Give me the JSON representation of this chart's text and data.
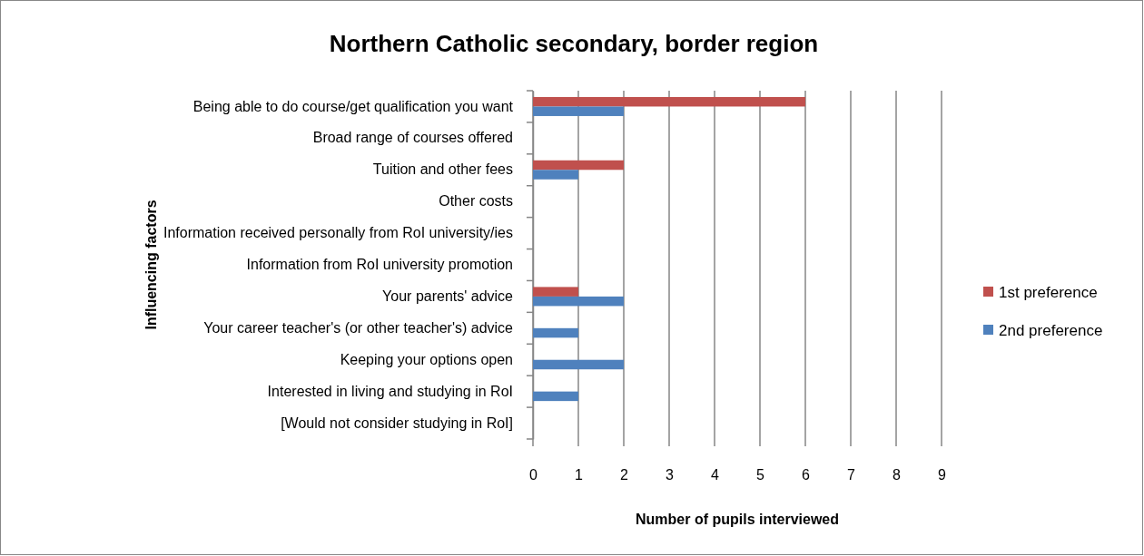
{
  "chart_data": {
    "type": "bar",
    "orientation": "horizontal",
    "title": "Northern Catholic secondary, border region",
    "xlabel": "Number of pupils interviewed",
    "ylabel": "Influencing factors",
    "categories": [
      "Being able to do course/get qualification you want",
      "Broad range of courses offered",
      "Tuition and other fees",
      "Other costs",
      "Information received personally from RoI university/ies",
      "Information from RoI university promotion",
      "Your parents' advice",
      "Your career teacher's (or other teacher's) advice",
      "Keeping your options open",
      "Interested in living and studying in RoI",
      "[Would not consider studying in RoI]"
    ],
    "series": [
      {
        "name": "1st preference",
        "color": "#c0504d",
        "values": [
          6,
          0,
          2,
          0,
          0,
          0,
          1,
          0,
          0,
          0,
          0
        ]
      },
      {
        "name": "2nd preference",
        "color": "#4f81bd",
        "values": [
          2,
          0,
          1,
          0,
          0,
          0,
          2,
          1,
          2,
          1,
          0
        ]
      }
    ],
    "xlim": [
      0,
      9
    ],
    "xticks": [
      0,
      1,
      2,
      3,
      4,
      5,
      6,
      7,
      8,
      9
    ],
    "grid": "x",
    "legend": "right"
  }
}
